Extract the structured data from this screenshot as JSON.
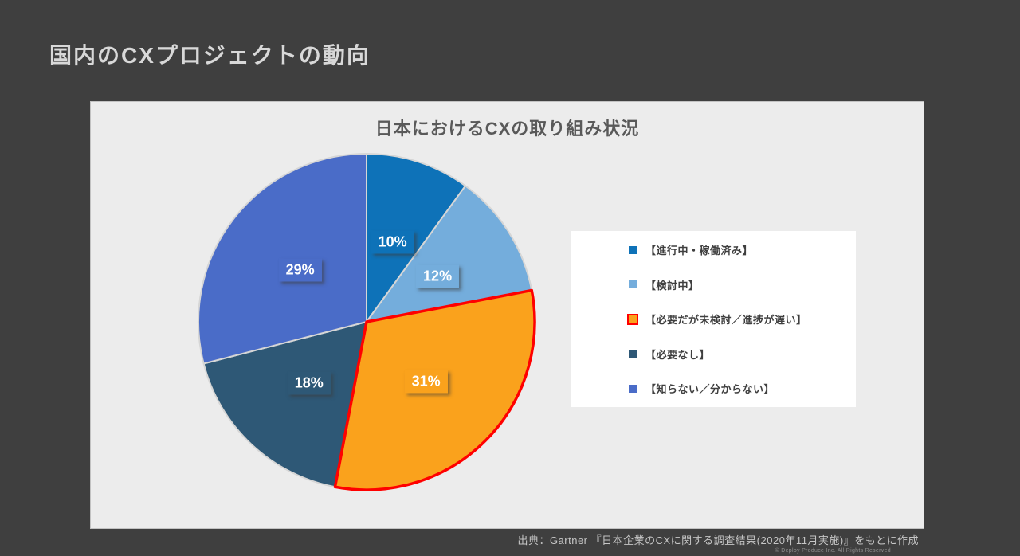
{
  "slide": {
    "title": "国内のCXプロジェクトの動向",
    "source": "出典：Gartner 『日本企業のCXに関する調査結果(2020年11月実施)』をもとに作成",
    "copyright": "© Deploy Produce Inc. All Rights Reserved",
    "background_color": "#3F3F3F",
    "panel_color": "#ECECEC"
  },
  "chart_data": {
    "type": "pie",
    "title": "日本におけるCXの取り組み状況",
    "start_angle_deg": 0,
    "direction": "clockwise",
    "legend_position": "right",
    "slice_border_color": "#D6D6D6",
    "highlight_border_color": "#FF0000",
    "series": [
      {
        "label": "【進行中・稼働済み】",
        "value": 10,
        "data_label": "10%",
        "color": "#0E72B8",
        "highlighted": false
      },
      {
        "label": "【検討中】",
        "value": 12,
        "data_label": "12%",
        "color": "#74ADDC",
        "highlighted": false
      },
      {
        "label": "【必要だが未検討／進捗が遅い】",
        "value": 31,
        "data_label": "31%",
        "color": "#FAA21C",
        "highlighted": true
      },
      {
        "label": "【必要なし】",
        "value": 18,
        "data_label": "18%",
        "color": "#2E5876",
        "highlighted": false
      },
      {
        "label": "【知らない／分からない】",
        "value": 29,
        "data_label": "29%",
        "color": "#4A6CC8",
        "highlighted": false
      }
    ]
  }
}
